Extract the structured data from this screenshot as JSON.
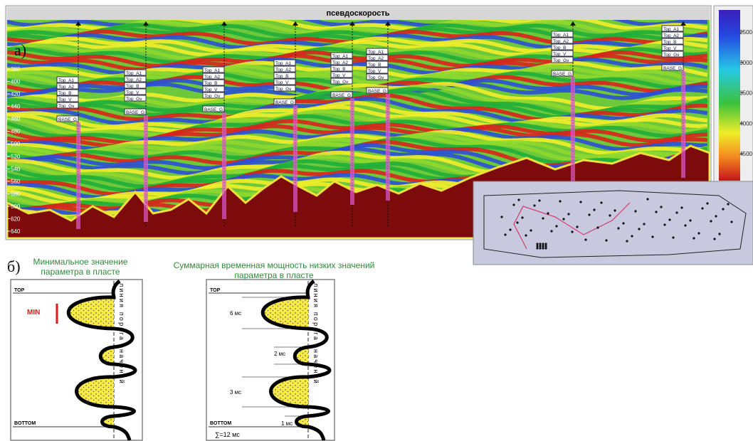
{
  "section": {
    "title": "псевдоскорость",
    "label": "а)",
    "time_ticks": [
      380,
      400,
      420,
      440,
      460,
      480,
      500,
      520,
      540,
      560,
      580,
      600,
      620,
      640
    ],
    "velocity_ticks": [
      2500,
      3000,
      3500,
      4000,
      4500
    ],
    "horizons": [
      "Top_A1",
      "Top_A2",
      "Top_B",
      "Top_V",
      "Top_Gv",
      "BASE_G"
    ]
  },
  "panel_b": {
    "label": "б)",
    "left": {
      "caption": "Минимальное значение параметра в пласте",
      "top": "TOP",
      "min": "MIN",
      "bottom": "BOTTOM",
      "threshold": "линия порога значений"
    },
    "right": {
      "caption": "Суммарная временная мощность низких значений параметра в пласте",
      "top": "TOP",
      "bottom": "BOTTOM",
      "threshold": "линия порога значений",
      "thicknesses": [
        "6 мс",
        "2 мс",
        "3 мс",
        "1 мс"
      ],
      "total": "∑=12 мс"
    }
  }
}
